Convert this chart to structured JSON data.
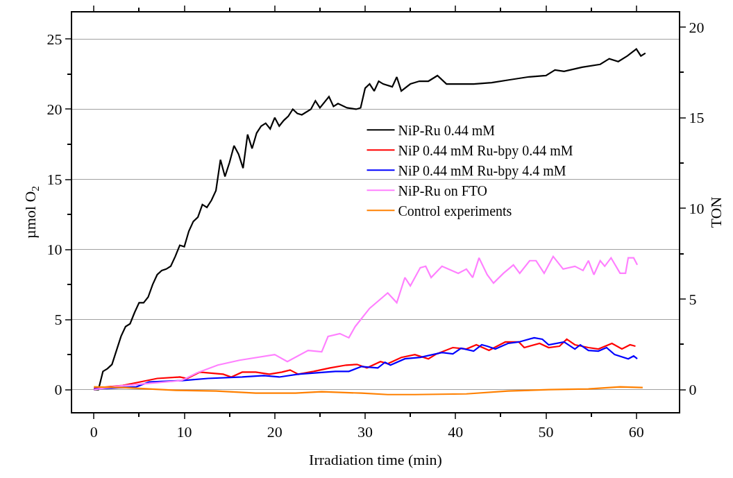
{
  "chart_data": {
    "type": "line",
    "xlabel": "Irradiation time (min)",
    "ylabel": "µmol O$_{2}$",
    "y2label": "TON",
    "xlim": [
      -2.4,
      64.7
    ],
    "xticks": [
      0,
      10,
      20,
      30,
      40,
      50,
      60
    ],
    "ylim": [
      -1.6,
      26.9
    ],
    "yticks": [
      0,
      5,
      10,
      15,
      20,
      25
    ],
    "y2lim": [
      -1.24,
      20.8
    ],
    "y2ticks": [
      0,
      5,
      10,
      15,
      20
    ],
    "grid": "y",
    "legend": "top right",
    "line_style": "solid",
    "marker": "none",
    "series": [
      {
        "name": "NiP-Ru 0.44 mM",
        "color": "#000000",
        "x": [
          0,
          0.5,
          1,
          1.5,
          2,
          2.5,
          3,
          3.5,
          4,
          4.5,
          5,
          5.5,
          6,
          6.5,
          7,
          7.5,
          8,
          8.5,
          9,
          9.5,
          10,
          10.5,
          11,
          11.5,
          12,
          12.5,
          13,
          13.5,
          14,
          14.5,
          15,
          15.5,
          16,
          16.5,
          17,
          17.5,
          18,
          18.5,
          19,
          19.5,
          20,
          20.5,
          21,
          21.5,
          22,
          22.5,
          23,
          24,
          24.5,
          25,
          26,
          26.5,
          27,
          28,
          29,
          29.5,
          30,
          30.5,
          31,
          31.5,
          32,
          33,
          33.5,
          34,
          35,
          36,
          37,
          38,
          39,
          40,
          42,
          44,
          46,
          48,
          50,
          51,
          52,
          54,
          56,
          57,
          58,
          59,
          60,
          60.5,
          61
        ],
        "values": [
          0,
          0,
          1.3,
          1.5,
          1.8,
          2.8,
          3.8,
          4.5,
          4.7,
          5.5,
          6.2,
          6.2,
          6.6,
          7.5,
          8.2,
          8.5,
          8.6,
          8.8,
          9.5,
          10.3,
          10.2,
          11.3,
          12,
          12.3,
          13.2,
          13,
          13.5,
          14.2,
          16.4,
          15.2,
          16.2,
          17.4,
          16.8,
          15.8,
          18.2,
          17.2,
          18.3,
          18.8,
          19.0,
          18.6,
          19.4,
          18.8,
          19.2,
          19.5,
          20.0,
          19.7,
          19.6,
          20.0,
          20.6,
          20.1,
          20.9,
          20.2,
          20.4,
          20.1,
          20.0,
          20.1,
          21.5,
          21.8,
          21.3,
          22.0,
          21.8,
          21.6,
          22.3,
          21.3,
          21.8,
          22.0,
          22.0,
          22.4,
          21.8,
          21.8,
          21.8,
          21.9,
          22.1,
          22.3,
          22.4,
          22.8,
          22.7,
          23.0,
          23.2,
          23.6,
          23.4,
          23.8,
          24.3,
          23.8,
          24.0
        ]
      },
      {
        "name": "NiP 0.44 mM Ru-bpy 0.44 mM",
        "color": "#ff0000",
        "x": [
          0,
          3.2,
          5.5,
          7.0,
          9.5,
          10.3,
          11.7,
          14.3,
          15.2,
          16.4,
          17.9,
          19.4,
          20.8,
          21.7,
          22.6,
          24.3,
          26.1,
          27.9,
          29.1,
          30.2,
          31.7,
          32.5,
          34.0,
          35.5,
          37.0,
          37.9,
          39.7,
          41.2,
          42.3,
          43.7,
          45.5,
          47.0,
          47.6,
          49.3,
          50.3,
          51.5,
          52.3,
          53.2,
          54.7,
          55.8,
          57.3,
          58.4,
          59.3,
          59.9
        ],
        "values": [
          0.1,
          0.3,
          0.6,
          0.8,
          0.9,
          0.8,
          1.25,
          1.1,
          0.9,
          1.25,
          1.25,
          1.1,
          1.25,
          1.4,
          1.1,
          1.3,
          1.55,
          1.75,
          1.8,
          1.55,
          2.0,
          1.85,
          2.3,
          2.5,
          2.2,
          2.55,
          3.0,
          2.9,
          3.2,
          2.8,
          3.4,
          3.4,
          3.0,
          3.3,
          3.0,
          3.1,
          3.6,
          3.2,
          3.0,
          2.9,
          3.3,
          2.9,
          3.2,
          3.1
        ]
      },
      {
        "name": "NiP 0.44 mM Ru-bpy 4.4 mM",
        "color": "#0000ff",
        "x": [
          0,
          4.7,
          6.1,
          9.7,
          12.6,
          16.4,
          18.8,
          20.5,
          22.6,
          26.7,
          28.2,
          29.6,
          31.4,
          32.2,
          32.8,
          34.4,
          36.1,
          38.5,
          39.7,
          40.6,
          42.0,
          42.9,
          43.5,
          44.4,
          45.8,
          47.0,
          48.7,
          49.6,
          50.3,
          52.0,
          53.2,
          53.8,
          54.7,
          55.8,
          56.7,
          57.6,
          59.1,
          59.7,
          60.1
        ],
        "values": [
          0.05,
          0.2,
          0.55,
          0.65,
          0.8,
          0.9,
          1.0,
          0.9,
          1.1,
          1.3,
          1.3,
          1.65,
          1.55,
          1.95,
          1.75,
          2.2,
          2.3,
          2.65,
          2.55,
          2.95,
          2.75,
          3.2,
          3.1,
          2.9,
          3.3,
          3.4,
          3.7,
          3.6,
          3.2,
          3.4,
          2.9,
          3.2,
          2.8,
          2.75,
          3.0,
          2.5,
          2.2,
          2.4,
          2.2
        ]
      },
      {
        "name": "NiP-Ru on FTO",
        "color": "#ff80ff",
        "x": [
          0,
          2.6,
          6.1,
          9.7,
          11.4,
          13.7,
          16.1,
          20.0,
          21.4,
          23.7,
          25.2,
          25.9,
          27.2,
          28.2,
          28.9,
          30.5,
          32.5,
          33.5,
          34.4,
          35.0,
          36.1,
          36.7,
          37.3,
          38.5,
          40.3,
          41.2,
          41.9,
          42.6,
          43.5,
          44.2,
          45.3,
          46.4,
          47.1,
          48.2,
          48.9,
          49.8,
          50.8,
          51.9,
          53.2,
          54.1,
          54.7,
          55.3,
          56.0,
          56.5,
          57.2,
          58.2,
          58.8,
          59.1,
          59.7,
          60.1
        ],
        "values": [
          0,
          0.25,
          0.45,
          0.65,
          1.2,
          1.75,
          2.1,
          2.5,
          2.0,
          2.8,
          2.7,
          3.8,
          4.0,
          3.7,
          4.5,
          5.8,
          6.9,
          6.2,
          8.0,
          7.4,
          8.7,
          8.8,
          8.0,
          8.8,
          8.3,
          8.6,
          8.0,
          9.4,
          8.2,
          7.6,
          8.3,
          8.9,
          8.3,
          9.2,
          9.2,
          8.3,
          9.5,
          8.6,
          8.8,
          8.5,
          9.2,
          8.2,
          9.2,
          8.8,
          9.4,
          8.3,
          8.3,
          9.4,
          9.4,
          8.9
        ]
      },
      {
        "name": "Control experiments",
        "color": "#ff8000",
        "x": [
          0,
          3.2,
          6.1,
          9.1,
          13.5,
          17.9,
          22.3,
          25.2,
          29.6,
          32.5,
          35.5,
          41.2,
          45.8,
          50.3,
          54.7,
          58.2,
          60.7
        ],
        "values": [
          0.2,
          0.15,
          0.05,
          -0.05,
          -0.1,
          -0.25,
          -0.25,
          -0.15,
          -0.25,
          -0.35,
          -0.35,
          -0.3,
          -0.1,
          0.0,
          0.05,
          0.2,
          0.15
        ]
      }
    ]
  }
}
